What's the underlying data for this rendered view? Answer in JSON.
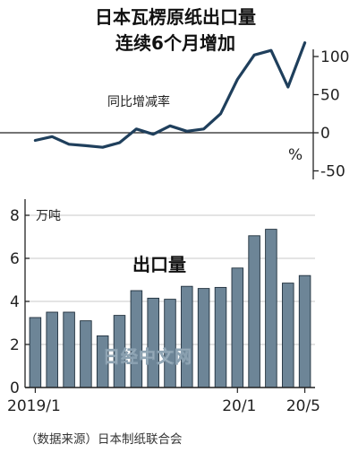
{
  "title_line1": "日本瓦楞原纸出口量",
  "title_line2": "连续6个月增加",
  "source": "（数据来源）日本制纸联合会",
  "watermark": "日经中文网",
  "chart_data": [
    {
      "type": "line",
      "label": "同比增减率",
      "unit": "%",
      "y_ticks": [
        "100",
        "50",
        "0",
        "-50"
      ],
      "ylim": [
        -50,
        130
      ],
      "values": [
        -10,
        -5,
        -15,
        -17,
        -19,
        -13,
        5,
        -2,
        9,
        2,
        5,
        25,
        70,
        102,
        108,
        60,
        118
      ],
      "color": "#1f3f5c"
    },
    {
      "type": "bar",
      "label": "出口量",
      "unit": "万吨",
      "y_ticks": [
        "8",
        "6",
        "4",
        "2",
        "0"
      ],
      "ylim": [
        0,
        8.5
      ],
      "x_tick_labels": [
        "2019/1",
        "20/1",
        "20/5"
      ],
      "values": [
        3.25,
        3.5,
        3.5,
        3.1,
        2.4,
        3.35,
        4.5,
        4.15,
        4.1,
        4.7,
        4.6,
        4.65,
        5.55,
        7.05,
        7.35,
        4.85,
        5.2
      ],
      "color": "#6d8597"
    }
  ]
}
